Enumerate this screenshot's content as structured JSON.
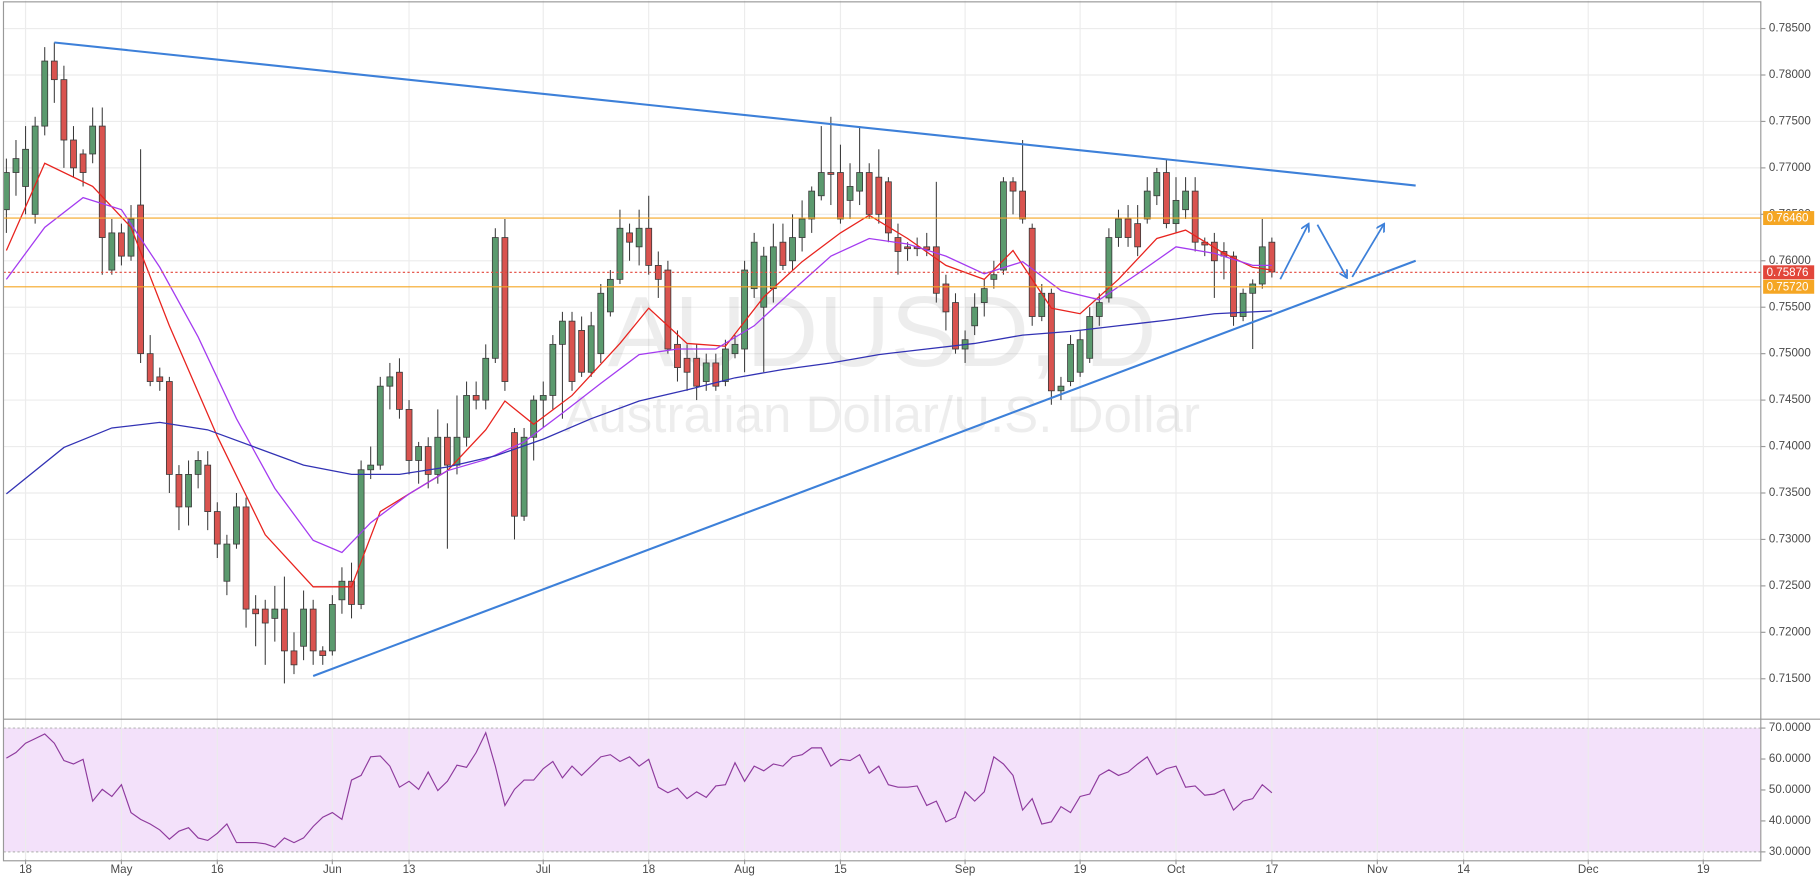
{
  "chart_data": {
    "type": "candlestick",
    "watermark": {
      "symbol": "AUDUSD, D",
      "description": "Australian Dollar/U.S. Dollar"
    },
    "up_color": "#5b9a6e",
    "down_color": "#d9534f",
    "x": [
      -2,
      -1,
      0,
      1,
      2,
      3,
      4,
      5,
      6,
      7,
      8,
      9,
      10,
      11,
      12,
      13,
      14,
      15,
      16,
      17,
      18,
      19,
      20,
      21,
      22,
      23,
      24,
      25,
      26,
      27,
      28,
      29,
      30,
      31,
      32,
      33,
      34,
      35,
      36,
      37,
      38,
      39,
      40,
      41,
      42,
      43,
      44,
      45,
      46,
      47,
      48,
      49,
      50,
      51,
      52,
      53,
      54,
      55,
      56,
      57,
      58,
      59,
      60,
      61,
      62,
      63,
      64,
      65,
      66,
      67,
      68,
      69,
      70,
      71,
      72,
      73,
      74,
      75,
      76,
      77,
      78,
      79,
      80,
      81,
      82,
      83,
      84,
      85,
      86,
      87,
      88,
      89,
      90,
      91,
      92,
      93,
      94,
      95,
      96,
      97,
      98,
      99,
      100,
      101,
      102,
      103,
      104,
      105,
      106,
      107,
      108,
      109,
      110,
      111,
      112,
      113,
      114,
      115,
      116,
      117,
      118,
      119,
      120,
      121,
      122,
      123,
      124,
      125,
      126,
      127,
      128,
      129,
      130
    ],
    "open": [
      0.7655,
      0.7695,
      0.768,
      0.765,
      0.7745,
      0.7815,
      0.7795,
      0.773,
      0.7715,
      0.7715,
      0.7745,
      0.759,
      0.763,
      0.7605,
      0.766,
      0.75,
      0.7475,
      0.747,
      0.737,
      0.7335,
      0.737,
      0.738,
      0.733,
      0.7255,
      0.7295,
      0.7335,
      0.7225,
      0.7225,
      0.7215,
      0.7225,
      0.718,
      0.7185,
      0.7225,
      0.718,
      0.718,
      0.7235,
      0.7255,
      0.723,
      0.7375,
      0.738,
      0.7465,
      0.748,
      0.744,
      0.7385,
      0.74,
      0.737,
      0.741,
      0.738,
      0.741,
      0.7455,
      0.745,
      0.7495,
      0.7625,
      0.7415,
      0.7325,
      0.741,
      0.745,
      0.7455,
      0.751,
      0.7535,
      0.7525,
      0.748,
      0.75,
      0.7545,
      0.758,
      0.763,
      0.7615,
      0.7635,
      0.7595,
      0.759,
      0.751,
      0.7495,
      0.7495,
      0.747,
      0.749,
      0.747,
      0.75,
      0.7505,
      0.757,
      0.755,
      0.757,
      0.762,
      0.76,
      0.7625,
      0.7645,
      0.767,
      0.7695,
      0.7695,
      0.7665,
      0.7675,
      0.7695,
      0.769,
      0.7685,
      0.7625,
      0.7615,
      0.7615,
      0.7615,
      0.7615,
      0.7575,
      0.7555,
      0.7505,
      0.753,
      0.7555,
      0.758,
      0.759,
      0.7685,
      0.7675,
      0.7635,
      0.754,
      0.7565,
      0.746,
      0.747,
      0.748,
      0.7495,
      0.754,
      0.756,
      0.7625,
      0.7645,
      0.764,
      0.7645,
      0.767,
      0.7695,
      0.764,
      0.7655,
      0.7675,
      0.762,
      0.762,
      0.761,
      0.7605,
      0.754,
      0.7565,
      0.7575,
      0.762
    ],
    "high": [
      0.771,
      0.773,
      0.7745,
      0.7755,
      0.783,
      0.7835,
      0.781,
      0.7745,
      0.772,
      0.7765,
      0.7765,
      0.7645,
      0.764,
      0.766,
      0.772,
      0.752,
      0.7485,
      0.7475,
      0.738,
      0.7385,
      0.7395,
      0.7395,
      0.734,
      0.7305,
      0.735,
      0.7345,
      0.724,
      0.7235,
      0.725,
      0.726,
      0.72,
      0.7245,
      0.7235,
      0.7185,
      0.724,
      0.727,
      0.7275,
      0.7385,
      0.74,
      0.7475,
      0.749,
      0.7495,
      0.745,
      0.7405,
      0.741,
      0.744,
      0.7425,
      0.7455,
      0.747,
      0.747,
      0.751,
      0.7635,
      0.7645,
      0.742,
      0.742,
      0.7455,
      0.747,
      0.752,
      0.7545,
      0.7545,
      0.754,
      0.7545,
      0.7575,
      0.759,
      0.7655,
      0.764,
      0.7655,
      0.767,
      0.761,
      0.76,
      0.7525,
      0.751,
      0.751,
      0.75,
      0.75,
      0.7515,
      0.752,
      0.76,
      0.763,
      0.7615,
      0.764,
      0.764,
      0.765,
      0.7665,
      0.768,
      0.7745,
      0.7755,
      0.7725,
      0.7705,
      0.7745,
      0.7705,
      0.772,
      0.769,
      0.764,
      0.762,
      0.7625,
      0.763,
      0.7685,
      0.7585,
      0.7565,
      0.7525,
      0.7565,
      0.758,
      0.76,
      0.769,
      0.769,
      0.773,
      0.764,
      0.7575,
      0.757,
      0.7475,
      0.752,
      0.7525,
      0.755,
      0.7565,
      0.7635,
      0.7655,
      0.766,
      0.766,
      0.769,
      0.77,
      0.771,
      0.769,
      0.769,
      0.769,
      0.7625,
      0.763,
      0.762,
      0.761,
      0.757,
      0.758,
      0.7645,
      0.7625
    ],
    "low": [
      0.763,
      0.767,
      0.765,
      0.764,
      0.7735,
      0.777,
      0.77,
      0.769,
      0.768,
      0.7705,
      0.7585,
      0.7585,
      0.7595,
      0.76,
      0.749,
      0.7465,
      0.746,
      0.735,
      0.731,
      0.7315,
      0.7355,
      0.731,
      0.728,
      0.724,
      0.729,
      0.7205,
      0.7185,
      0.7165,
      0.719,
      0.7145,
      0.7155,
      0.717,
      0.7165,
      0.7165,
      0.7175,
      0.722,
      0.7215,
      0.7225,
      0.7365,
      0.7375,
      0.744,
      0.743,
      0.737,
      0.736,
      0.7355,
      0.736,
      0.729,
      0.737,
      0.74,
      0.744,
      0.744,
      0.749,
      0.746,
      0.73,
      0.732,
      0.7385,
      0.742,
      0.744,
      0.743,
      0.746,
      0.7475,
      0.7475,
      0.749,
      0.754,
      0.7575,
      0.76,
      0.7595,
      0.7585,
      0.756,
      0.75,
      0.747,
      0.746,
      0.745,
      0.746,
      0.746,
      0.7465,
      0.7495,
      0.748,
      0.756,
      0.748,
      0.7555,
      0.759,
      0.759,
      0.761,
      0.763,
      0.7665,
      0.766,
      0.764,
      0.7645,
      0.766,
      0.7645,
      0.764,
      0.762,
      0.7585,
      0.76,
      0.7605,
      0.7605,
      0.7555,
      0.7525,
      0.75,
      0.749,
      0.752,
      0.754,
      0.757,
      0.7585,
      0.765,
      0.764,
      0.753,
      0.7535,
      0.7445,
      0.745,
      0.7465,
      0.7475,
      0.749,
      0.753,
      0.7555,
      0.7615,
      0.7615,
      0.7605,
      0.764,
      0.766,
      0.7635,
      0.763,
      0.7645,
      0.761,
      0.7605,
      0.756,
      0.758,
      0.753,
      0.7535,
      0.7505,
      0.757,
      0.7582
    ],
    "close": [
      0.7695,
      0.771,
      0.772,
      0.7745,
      0.7815,
      0.7795,
      0.773,
      0.77,
      0.7695,
      0.7745,
      0.7625,
      0.763,
      0.7605,
      0.7645,
      0.75,
      0.747,
      0.747,
      0.737,
      0.7335,
      0.737,
      0.7385,
      0.733,
      0.7295,
      0.7295,
      0.7335,
      0.7225,
      0.722,
      0.721,
      0.7225,
      0.718,
      0.7165,
      0.7225,
      0.718,
      0.7175,
      0.723,
      0.7255,
      0.723,
      0.7375,
      0.738,
      0.7465,
      0.7475,
      0.744,
      0.7385,
      0.74,
      0.737,
      0.741,
      0.738,
      0.741,
      0.7455,
      0.745,
      0.7495,
      0.7625,
      0.747,
      0.7325,
      0.741,
      0.745,
      0.7455,
      0.751,
      0.7535,
      0.747,
      0.748,
      0.753,
      0.7565,
      0.758,
      0.7635,
      0.762,
      0.7635,
      0.7595,
      0.758,
      0.7505,
      0.7485,
      0.748,
      0.7465,
      0.749,
      0.7465,
      0.7505,
      0.751,
      0.759,
      0.762,
      0.7605,
      0.7615,
      0.7595,
      0.7625,
      0.7645,
      0.7675,
      0.7695,
      0.7693,
      0.7645,
      0.768,
      0.7695,
      0.765,
      0.765,
      0.763,
      0.761,
      0.7613,
      0.7613,
      0.7612,
      0.7565,
      0.7545,
      0.7505,
      0.7515,
      0.755,
      0.757,
      0.7585,
      0.7685,
      0.7675,
      0.7645,
      0.754,
      0.7565,
      0.746,
      0.7465,
      0.751,
      0.7515,
      0.754,
      0.7555,
      0.7625,
      0.7645,
      0.7625,
      0.7615,
      0.7675,
      0.7695,
      0.764,
      0.7665,
      0.7675,
      0.762,
      0.7617,
      0.76,
      0.7605,
      0.754,
      0.7565,
      0.7575,
      0.7615,
      0.7588
    ],
    "moving_averages": [
      {
        "color": "#e8231e",
        "x": [
          -2,
          2,
          7,
          11,
          15,
          20,
          25,
          30,
          34,
          37,
          40,
          44,
          48,
          50,
          53,
          57,
          62,
          65,
          69,
          73,
          77,
          81,
          85,
          88,
          92,
          96,
          100,
          103,
          107,
          110,
          114,
          118,
          121,
          125,
          128,
          130
        ],
        "values": [
          0.7611,
          0.7705,
          0.768,
          0.7636,
          0.753,
          0.7411,
          0.7305,
          0.7249,
          0.7249,
          0.733,
          0.7349,
          0.7374,
          0.7418,
          0.7449,
          0.7424,
          0.7455,
          0.7511,
          0.7549,
          0.7511,
          0.7508,
          0.7561,
          0.7599,
          0.763,
          0.7649,
          0.7624,
          0.7595,
          0.758,
          0.7611,
          0.7549,
          0.7543,
          0.758,
          0.7624,
          0.7633,
          0.7608,
          0.7593,
          0.759
        ]
      },
      {
        "color": "#a43bf0",
        "x": [
          -2,
          2,
          6,
          10,
          14,
          18,
          22,
          26,
          30,
          33,
          36,
          40,
          44,
          48,
          52,
          56,
          60,
          64,
          68,
          72,
          76,
          80,
          84,
          88,
          92,
          96,
          100,
          104,
          108,
          112,
          116,
          120,
          124,
          128,
          130
        ],
        "values": [
          0.758,
          0.7636,
          0.7668,
          0.7655,
          0.7593,
          0.7518,
          0.743,
          0.7355,
          0.7299,
          0.7286,
          0.7318,
          0.7349,
          0.7374,
          0.7386,
          0.7405,
          0.7436,
          0.7468,
          0.7499,
          0.7505,
          0.7505,
          0.753,
          0.7568,
          0.7605,
          0.7624,
          0.7618,
          0.7605,
          0.7586,
          0.7599,
          0.7568,
          0.7558,
          0.7586,
          0.7615,
          0.7608,
          0.7595,
          0.7595
        ]
      },
      {
        "color": "#3232b4",
        "x": [
          -2,
          4,
          9,
          14,
          19,
          24,
          29,
          34,
          39,
          44,
          49,
          54,
          59,
          64,
          69,
          74,
          79,
          84,
          89,
          94,
          99,
          104,
          109,
          114,
          119,
          124,
          128,
          130
        ],
        "values": [
          0.7349,
          0.7399,
          0.742,
          0.7426,
          0.7418,
          0.7399,
          0.738,
          0.737,
          0.737,
          0.7378,
          0.739,
          0.7408,
          0.743,
          0.7449,
          0.7461,
          0.7474,
          0.7483,
          0.749,
          0.7499,
          0.7505,
          0.7511,
          0.752,
          0.7524,
          0.753,
          0.7536,
          0.7543,
          0.7545,
          0.7546
        ]
      }
    ],
    "trend_lines": [
      {
        "color": "#3d80d9",
        "x": [
          3,
          145
        ],
        "y": [
          0.7835,
          0.7681
        ]
      },
      {
        "color": "#3d80d9",
        "x": [
          30,
          145
        ],
        "y": [
          0.7153,
          0.76
        ]
      }
    ],
    "price_lines": [
      {
        "value": 0.7646,
        "label": "0.76460",
        "color": "#f5a623",
        "style": "solid"
      },
      {
        "value": 0.75876,
        "label": "0.75876",
        "color": "#e2463a",
        "style": "dotted"
      },
      {
        "value": 0.7572,
        "label": "0.75720",
        "color": "#f5a623",
        "style": "solid"
      }
    ],
    "xlim": [
      -2,
      181
    ],
    "xticks": [
      {
        "value": 0,
        "label": "18"
      },
      {
        "value": 10,
        "label": "May"
      },
      {
        "value": 20,
        "label": "16"
      },
      {
        "value": 32,
        "label": "Jun"
      },
      {
        "value": 40,
        "label": "13"
      },
      {
        "value": 54,
        "label": "Jul"
      },
      {
        "value": 65,
        "label": "18"
      },
      {
        "value": 75,
        "label": "Aug"
      },
      {
        "value": 85,
        "label": "15"
      },
      {
        "value": 98,
        "label": "Sep"
      },
      {
        "value": 110,
        "label": "19"
      },
      {
        "value": 120,
        "label": "Oct"
      },
      {
        "value": 130,
        "label": "17"
      },
      {
        "value": 141,
        "label": "Nov"
      },
      {
        "value": 150,
        "label": "14"
      },
      {
        "value": 163,
        "label": "Dec"
      },
      {
        "value": 175,
        "label": "19"
      }
    ],
    "ylim": [
      0.7109,
      0.788
    ],
    "yticks": [
      {
        "value": 0.715,
        "label": "0.71500"
      },
      {
        "value": 0.72,
        "label": "0.72000"
      },
      {
        "value": 0.725,
        "label": "0.72500"
      },
      {
        "value": 0.73,
        "label": "0.73000"
      },
      {
        "value": 0.735,
        "label": "0.73500"
      },
      {
        "value": 0.74,
        "label": "0.74000"
      },
      {
        "value": 0.745,
        "label": "0.74500"
      },
      {
        "value": 0.75,
        "label": "0.75000"
      },
      {
        "value": 0.755,
        "label": "0.75500"
      },
      {
        "value": 0.76,
        "label": "0.76000"
      },
      {
        "value": 0.765,
        "label": "0.76500"
      },
      {
        "value": 0.77,
        "label": "0.77000"
      },
      {
        "value": 0.775,
        "label": "0.77500"
      },
      {
        "value": 0.78,
        "label": "0.78000"
      },
      {
        "value": 0.785,
        "label": "0.78500"
      }
    ],
    "grid": true,
    "rsi": {
      "type": "line",
      "color": "#8e3a9d",
      "band": [
        30,
        70
      ],
      "band_color": "#f3e1fa",
      "ylim": [
        27.5,
        72.5
      ],
      "yticks": [
        {
          "value": 30,
          "label": "30.0000"
        },
        {
          "value": 40,
          "label": "40.0000"
        },
        {
          "value": 50,
          "label": "50.0000"
        },
        {
          "value": 60,
          "label": "60.0000"
        },
        {
          "value": 70,
          "label": "70.0000"
        }
      ],
      "values": [
        60.3,
        62.1,
        65.1,
        66.6,
        68.1,
        65.1,
        59.5,
        58.4,
        59.9,
        46.4,
        50.2,
        47.9,
        51.7,
        42.7,
        40.5,
        39.0,
        37.1,
        34.1,
        36.7,
        37.8,
        34.5,
        33.7,
        36.0,
        39.0,
        33.0,
        33.0,
        33.0,
        32.6,
        31.5,
        34.5,
        33.0,
        34.5,
        38.2,
        41.2,
        42.7,
        40.5,
        53.2,
        54.7,
        60.7,
        61.0,
        57.7,
        50.9,
        52.8,
        50.2,
        55.8,
        49.8,
        52.8,
        58.0,
        57.3,
        62.1,
        68.5,
        57.7,
        45.0,
        50.2,
        53.2,
        53.2,
        56.9,
        59.2,
        53.9,
        57.7,
        54.7,
        57.7,
        60.7,
        61.4,
        59.2,
        60.7,
        57.7,
        59.9,
        50.9,
        49.1,
        50.6,
        47.2,
        49.4,
        47.6,
        51.3,
        51.7,
        58.8,
        52.8,
        57.7,
        56.2,
        58.4,
        57.7,
        60.7,
        61.4,
        63.6,
        63.6,
        57.7,
        59.9,
        59.5,
        61.4,
        55.4,
        57.7,
        51.7,
        50.9,
        50.9,
        51.3,
        45.0,
        46.4,
        39.7,
        41.2,
        49.4,
        46.4,
        49.4,
        60.7,
        58.4,
        54.7,
        43.5,
        47.2,
        39.0,
        39.7,
        44.6,
        42.7,
        47.9,
        48.7,
        54.7,
        56.5,
        54.7,
        55.8,
        58.4,
        60.7,
        55.0,
        56.9,
        57.7,
        50.9,
        51.3,
        48.3,
        48.7,
        50.2,
        43.5,
        46.4,
        47.2,
        51.7,
        49.1
      ]
    }
  }
}
